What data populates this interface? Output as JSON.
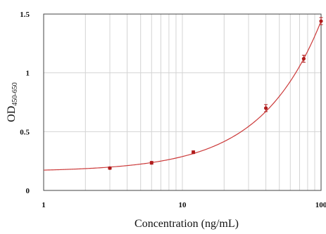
{
  "chart_data": {
    "type": "scatter",
    "title": "",
    "xlabel": "Concentration (ng/mL)",
    "ylabel_main": "OD",
    "ylabel_sub": "450-650",
    "x_scale": "log",
    "xlim": [
      1,
      100
    ],
    "ylim": [
      0,
      1.5
    ],
    "x_ticks": [
      {
        "value": 1,
        "label": "1"
      },
      {
        "value": 10,
        "label": "10"
      },
      {
        "value": 100,
        "label": "100"
      }
    ],
    "y_ticks": [
      {
        "value": 0,
        "label": "0"
      },
      {
        "value": 0.5,
        "label": "0.5"
      },
      {
        "value": 1,
        "label": "1"
      },
      {
        "value": 1.5,
        "label": "1.5"
      }
    ],
    "grid": "log-minor-x, major-y",
    "series": [
      {
        "points": [
          {
            "x": 3,
            "y": 0.19,
            "err": 0.01
          },
          {
            "x": 6,
            "y": 0.235,
            "err": 0.012
          },
          {
            "x": 12,
            "y": 0.325,
            "err": 0.012
          },
          {
            "x": 40,
            "y": 0.7,
            "err": 0.03
          },
          {
            "x": 75,
            "y": 1.12,
            "err": 0.03
          },
          {
            "x": 100,
            "y": 1.44,
            "err": 0.03
          }
        ]
      }
    ],
    "fit_curve": {
      "form": "linear",
      "intercept": 0.16,
      "slope": 0.0128
    },
    "colors": {
      "marker": "#b01c1c",
      "curve": "#cc3a3a",
      "grid": "#d4d4d4",
      "frame": "#444444"
    }
  }
}
